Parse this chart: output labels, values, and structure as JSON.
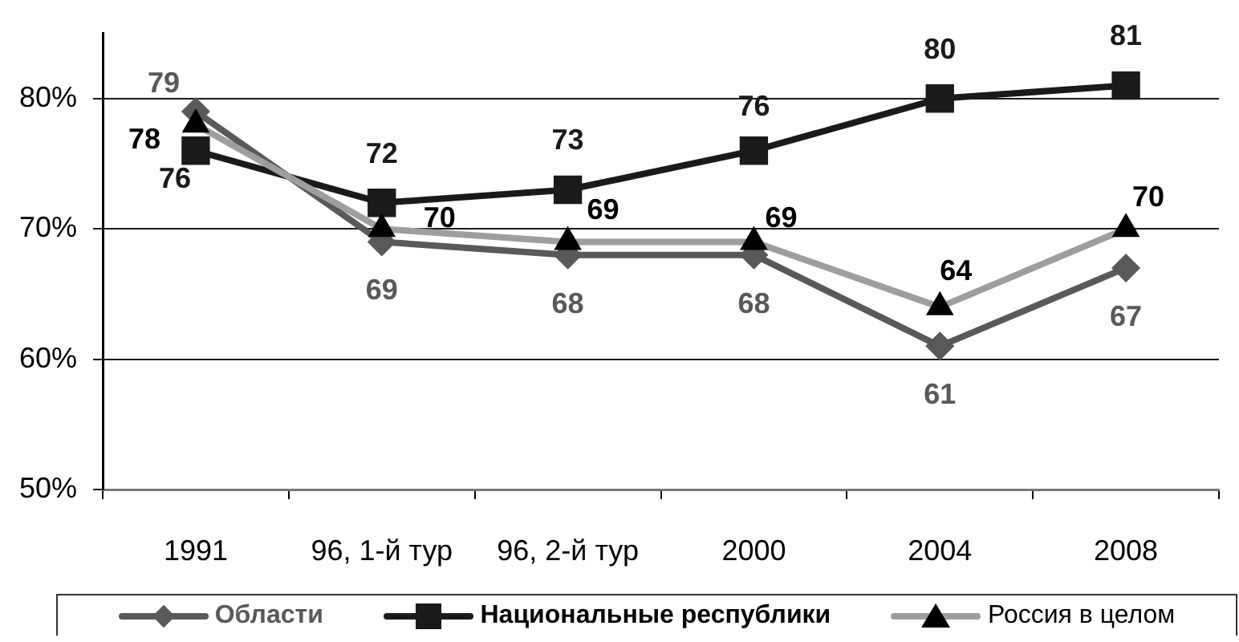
{
  "chart_data": {
    "type": "line",
    "categories": [
      "1991",
      "96, 1-й тур",
      "96, 2-й тур",
      "2000",
      "2004",
      "2008"
    ],
    "series": [
      {
        "name": "Области",
        "color": "#595959",
        "marker": "diamond",
        "values": [
          79,
          69,
          68,
          68,
          61,
          67
        ]
      },
      {
        "name": "Национальные республики",
        "color": "#1a1a1a",
        "marker": "square",
        "values": [
          76,
          72,
          73,
          76,
          80,
          81
        ]
      },
      {
        "name": "Россия в целом",
        "color": "#9e9e9e",
        "colors": [
          "#000000",
          "#000000",
          "#000000",
          "#000000",
          "#000000",
          "#000000"
        ],
        "marker": "triangle",
        "values": [
          78,
          70,
          69,
          69,
          64,
          70
        ]
      }
    ],
    "ylim": [
      50,
      85
    ],
    "yticks": [
      {
        "value": 50,
        "label": "50%"
      },
      {
        "value": 60,
        "label": "60%"
      },
      {
        "value": 70,
        "label": "70%"
      },
      {
        "value": 80,
        "label": "80%"
      }
    ],
    "grid": "y",
    "legend": "bottom",
    "data_labels": true
  }
}
